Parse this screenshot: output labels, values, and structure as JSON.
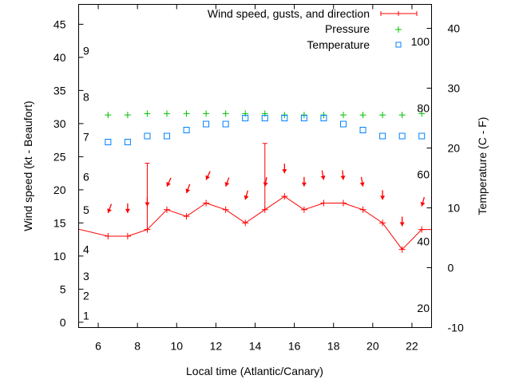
{
  "chart_data": {
    "type": "line",
    "xlabel": "Local time (Atlantic/Canary)",
    "ylabel": "Wind speed (kt - Beaufort)",
    "y2label": "Temperature (C - F)",
    "xlim": [
      5,
      23
    ],
    "ylim": [
      -0.8,
      48
    ],
    "y2lim": [
      -10,
      44
    ],
    "xticks": [
      6,
      8,
      10,
      12,
      14,
      16,
      18,
      20,
      22
    ],
    "yticks": [
      0,
      5,
      10,
      15,
      20,
      25,
      30,
      35,
      40,
      45
    ],
    "y2ticks": [
      -10,
      0,
      10,
      20,
      30,
      40
    ],
    "beaufort_labels": [
      {
        "label": "1",
        "kt": 1
      },
      {
        "label": "2",
        "kt": 4
      },
      {
        "label": "3",
        "kt": 7
      },
      {
        "label": "4",
        "kt": 11
      },
      {
        "label": "5",
        "kt": 17
      },
      {
        "label": "6",
        "kt": 22
      },
      {
        "label": "7",
        "kt": 28
      },
      {
        "label": "8",
        "kt": 34
      },
      {
        "label": "9",
        "kt": 41
      }
    ],
    "fahrenheit_labels": [
      {
        "label": "20",
        "c": -6.7
      },
      {
        "label": "40",
        "c": 4.4
      },
      {
        "label": "60",
        "c": 15.6
      },
      {
        "label": "80",
        "c": 26.7
      },
      {
        "label": "100",
        "c": 37.8
      }
    ],
    "legend": {
      "position": "top-right",
      "entries": [
        "Wind speed, gusts, and direction",
        "Pressure",
        "Temperature"
      ]
    },
    "series": [
      {
        "name": "Wind speed, gusts, and direction",
        "color": "#ff0000",
        "x": [
          4.5,
          6.5,
          7.5,
          8.5,
          9.5,
          10.5,
          11.5,
          12.5,
          13.5,
          14.5,
          15.5,
          16.5,
          17.5,
          18.5,
          19.5,
          20.5,
          21.5,
          22.5,
          23.5
        ],
        "values": [
          14.4,
          13,
          13,
          14,
          17,
          16,
          18,
          17,
          15,
          17,
          19,
          17,
          18,
          18,
          17,
          15,
          11,
          14,
          14
        ],
        "gusts": [
          {
            "x": 8.5,
            "value": 24
          },
          {
            "x": 14.5,
            "value": 27
          }
        ],
        "direction_deg": [
          20,
          0,
          0,
          25,
          20,
          25,
          20,
          15,
          10,
          0,
          0,
          350,
          355,
          350,
          0,
          0,
          15
        ]
      },
      {
        "name": "Pressure",
        "color": "#00c000",
        "x": [
          6.5,
          7.5,
          8.5,
          9.5,
          10.5,
          11.5,
          12.5,
          13.5,
          14.5,
          15.5,
          16.5,
          17.5,
          18.5,
          19.5,
          20.5,
          21.5,
          22.5
        ],
        "values": [
          31.3,
          31.3,
          31.5,
          31.5,
          31.5,
          31.5,
          31.5,
          31.5,
          31.5,
          31.3,
          31.3,
          31.3,
          31.3,
          31.3,
          31.3,
          31.3,
          31.5
        ]
      },
      {
        "name": "Temperature",
        "color": "#0080ff",
        "axis": "y2",
        "x": [
          6.5,
          7.5,
          8.5,
          9.5,
          10.5,
          11.5,
          12.5,
          13.5,
          14.5,
          15.5,
          16.5,
          17.5,
          18.5,
          19.5,
          20.5,
          21.5,
          22.5
        ],
        "values": [
          21,
          21,
          22,
          22,
          23,
          24,
          24,
          25,
          25,
          25,
          25,
          25,
          24,
          23,
          22,
          22,
          22
        ]
      }
    ]
  }
}
